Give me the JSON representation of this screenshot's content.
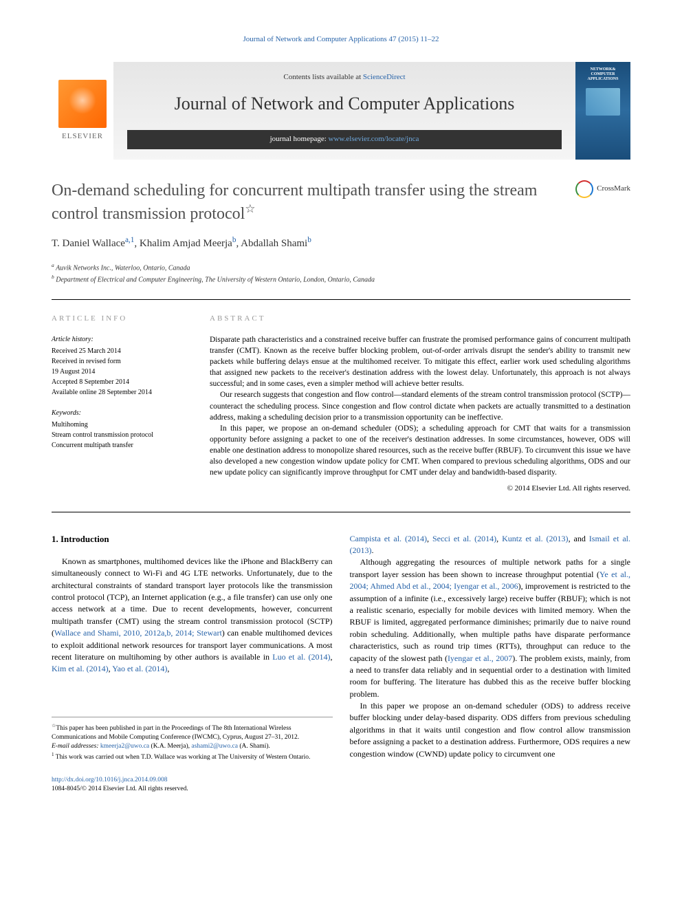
{
  "top_link": "Journal of Network and Computer Applications 47 (2015) 11–22",
  "header": {
    "contents_prefix": "Contents lists available at ",
    "contents_link": "ScienceDirect",
    "journal_name": "Journal of Network and Computer Applications",
    "homepage_prefix": "journal homepage: ",
    "homepage_link": "www.elsevier.com/locate/jnca",
    "publisher_name": "ELSEVIER",
    "cover_text": "NETWORK& COMPUTER APPLICATIONS"
  },
  "title": "On-demand scheduling for concurrent multipath transfer using the stream control transmission protocol",
  "title_mark": "☆",
  "crossmark_label": "CrossMark",
  "authors_html": "T. Daniel Wallace",
  "author_sup1": "a,1",
  "author2": ", Khalim Amjad Meerja",
  "author_sup2": "b",
  "author3": ", Abdallah Shami",
  "author_sup3": "b",
  "affiliations": {
    "a": "Auvik Networks Inc., Waterloo, Ontario, Canada",
    "b": "Department of Electrical and Computer Engineering, The University of Western Ontario, London, Ontario, Canada"
  },
  "info": {
    "heading": "ARTICLE INFO",
    "history_label": "Article history:",
    "history": [
      "Received 25 March 2014",
      "Received in revised form",
      "19 August 2014",
      "Accepted 8 September 2014",
      "Available online 28 September 2014"
    ],
    "keywords_label": "Keywords:",
    "keywords": [
      "Multihoming",
      "Stream control transmission protocol",
      "Concurrent multipath transfer"
    ]
  },
  "abstract": {
    "heading": "ABSTRACT",
    "p1": "Disparate path characteristics and a constrained receive buffer can frustrate the promised performance gains of concurrent multipath transfer (CMT). Known as the receive buffer blocking problem, out-of-order arrivals disrupt the sender's ability to transmit new packets while buffering delays ensue at the multihomed receiver. To mitigate this effect, earlier work used scheduling algorithms that assigned new packets to the receiver's destination address with the lowest delay. Unfortunately, this approach is not always successful; and in some cases, even a simpler method will achieve better results.",
    "p2": "Our research suggests that congestion and flow control—standard elements of the stream control transmission protocol (SCTP)—counteract the scheduling process. Since congestion and flow control dictate when packets are actually transmitted to a destination address, making a scheduling decision prior to a transmission opportunity can be ineffective.",
    "p3": "In this paper, we propose an on-demand scheduler (ODS); a scheduling approach for CMT that waits for a transmission opportunity before assigning a packet to one of the receiver's destination addresses. In some circumstances, however, ODS will enable one destination address to monopolize shared resources, such as the receive buffer (RBUF). To circumvent this issue we have also developed a new congestion window update policy for CMT. When compared to previous scheduling algorithms, ODS and our new update policy can significantly improve throughput for CMT under delay and bandwidth-based disparity.",
    "copyright": "© 2014 Elsevier Ltd. All rights reserved."
  },
  "body": {
    "sec1_heading": "1. Introduction",
    "col1_p1a": "Known as smartphones, multihomed devices like the iPhone and BlackBerry can simultaneously connect to Wi-Fi and 4G LTE networks. Unfortunately, due to the architectural constraints of standard transport layer protocols like the transmission control protocol (TCP), an Internet application (e.g., a file transfer) can use only one access network at a time. Due to recent developments, however, concurrent multipath transfer (CMT) using the stream control transmission protocol (SCTP) (",
    "col1_link1": "Wallace and Shami, 2010, 2012a,b, 2014; Stewart",
    "col1_p1b": ") can enable multihomed devices to exploit additional network resources for transport layer communications. A most recent literature on multihoming by other authors is available in ",
    "col1_link2": "Luo et al. (2014)",
    "col1_p1c": ", ",
    "col1_link3": "Kim et al. (2014)",
    "col1_p1d": ", ",
    "col1_link4": "Yao et al. (2014)",
    "col1_p1e": ",",
    "col2_link1": "Campista et al. (2014)",
    "col2_p0a": ", ",
    "col2_link2": "Secci et al. (2014)",
    "col2_p0b": ", ",
    "col2_link3": "Kuntz et al. (2013)",
    "col2_p0c": ", and ",
    "col2_link4": "Ismail et al. (2013)",
    "col2_p0d": ".",
    "col2_p1a": "Although aggregating the resources of multiple network paths for a single transport layer session has been shown to increase throughput potential (",
    "col2_link5": "Ye et al., 2004; Ahmed Abd et al., 2004; Iyengar et al., 2006",
    "col2_p1b": "), improvement is restricted to the assumption of a infinite (i.e., excessively large) receive buffer (RBUF); which is not a realistic scenario, especially for mobile devices with limited memory. When the RBUF is limited, aggregated performance diminishes; primarily due to naive round robin scheduling. Additionally, when multiple paths have disparate performance characteristics, such as round trip times (RTTs), throughput can reduce to the capacity of the slowest path (",
    "col2_link6": "Iyengar et al., 2007",
    "col2_p1c": "). The problem exists, mainly, from a need to transfer data reliably and in sequential order to a destination with limited room for buffering. The literature has dubbed this as the receive buffer blocking problem.",
    "col2_p2": "In this paper we propose an on-demand scheduler (ODS) to address receive buffer blocking under delay-based disparity. ODS differs from previous scheduling algorithms in that it waits until congestion and flow control allow transmission before assigning a packet to a destination address. Furthermore, ODS requires a new congestion window (CWND) update policy to circumvent one"
  },
  "footnotes": {
    "star": "This paper has been published in part in the Proceedings of The 8th International Wireless Communications and Mobile Computing Conference (IWCMC), Cyprus, August 27–31, 2012.",
    "email_label": "E-mail addresses: ",
    "email1": "kmeerja2@uwo.ca",
    "email1_name": " (K.A. Meerja), ",
    "email2": "ashami2@uwo.ca",
    "email2_name": " (A. Shami).",
    "note1": "This work was carried out when T.D. Wallace was working at The University of Western Ontario."
  },
  "footer": {
    "doi": "http://dx.doi.org/10.1016/j.jnca.2014.09.008",
    "issn": "1084-8045/© 2014 Elsevier Ltd. All rights reserved."
  },
  "colors": {
    "link": "#2662a8",
    "text": "#000000",
    "heading_gray": "#999999",
    "elsevier_orange": "#ff6600"
  }
}
